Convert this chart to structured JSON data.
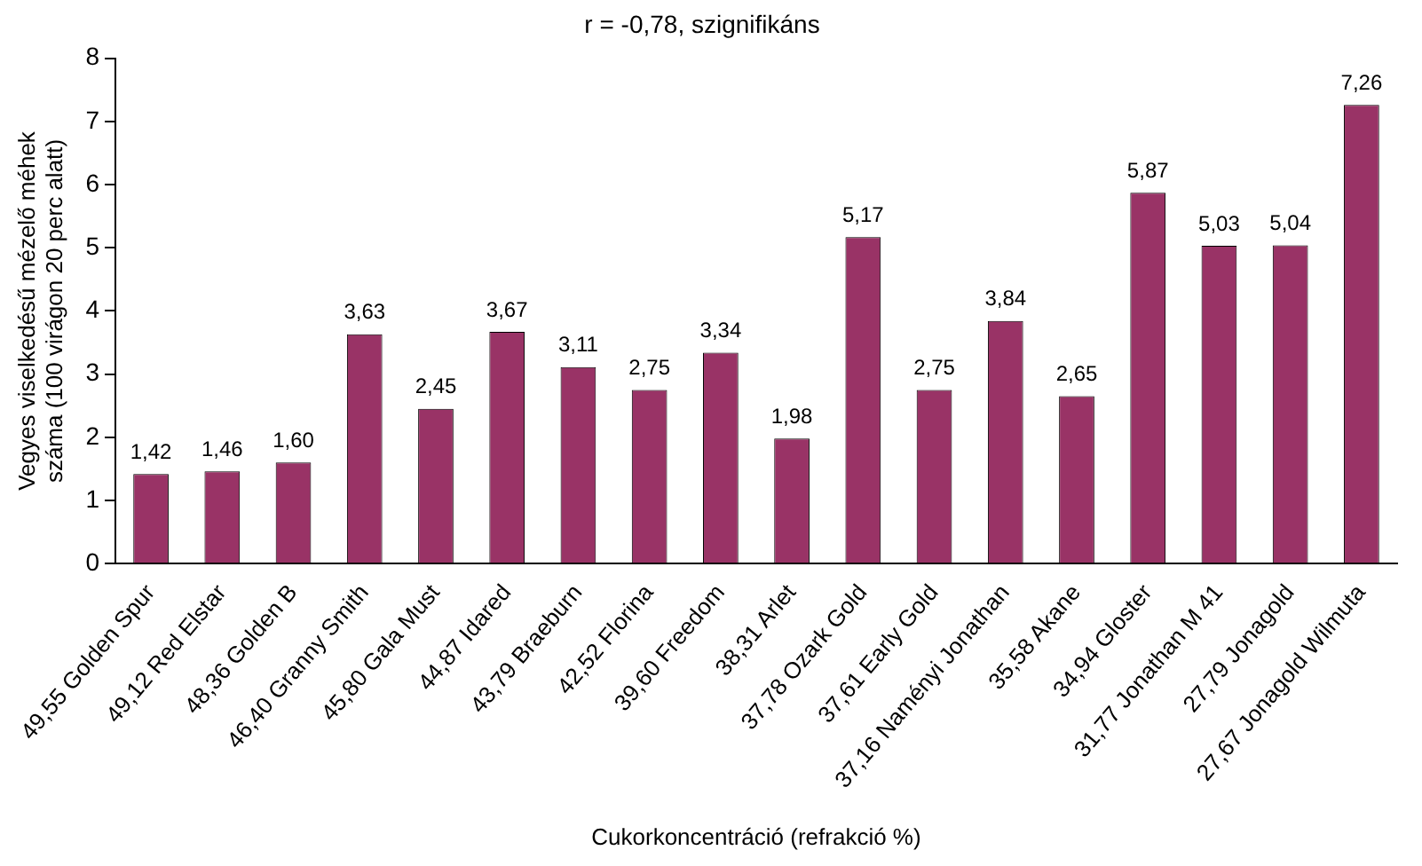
{
  "chart_data": {
    "type": "bar",
    "title": "r = -0,78, szignifikáns",
    "xlabel": "Cukorkoncentráció (refrakció %)",
    "ylabel": "Vegyes viselkedésű mézelő méhek\nszáma (100 virágon 20 perc alatt)",
    "categories": [
      "49,55 Golden Spur",
      "49,12 Red Elstar",
      "48,36 Golden B",
      "46,40 Granny Smith",
      "45,80 Gala Must",
      "44,87 Idared",
      "43,79 Braeburn",
      "42,52 Florina",
      "39,60 Freedom",
      "38,31 Arlet",
      "37,78 Ozark Gold",
      "37,61 Early Gold",
      "37,16 Naményi Jonathan",
      "35,58 Akane",
      "34,94 Gloster",
      "31,77 Jonathan M 41",
      "27,79 Jonagold",
      "27,67 Jonagold Wilmuta"
    ],
    "values": [
      1.42,
      1.46,
      1.6,
      3.63,
      2.45,
      3.67,
      3.11,
      2.75,
      3.34,
      1.98,
      5.17,
      2.75,
      3.84,
      2.65,
      5.87,
      5.03,
      5.04,
      7.26
    ],
    "value_labels": [
      "1,42",
      "1,46",
      "1,60",
      "3,63",
      "2,45",
      "3,67",
      "3,11",
      "2,75",
      "3,34",
      "1,98",
      "5,17",
      "2,75",
      "3,84",
      "2,65",
      "5,87",
      "5,03",
      "5,04",
      "7,26"
    ],
    "color": "#993366",
    "ylim": [
      0,
      8
    ],
    "yticks": [
      0,
      1,
      2,
      3,
      4,
      5,
      6,
      7,
      8
    ],
    "grid": false,
    "legend": false
  }
}
